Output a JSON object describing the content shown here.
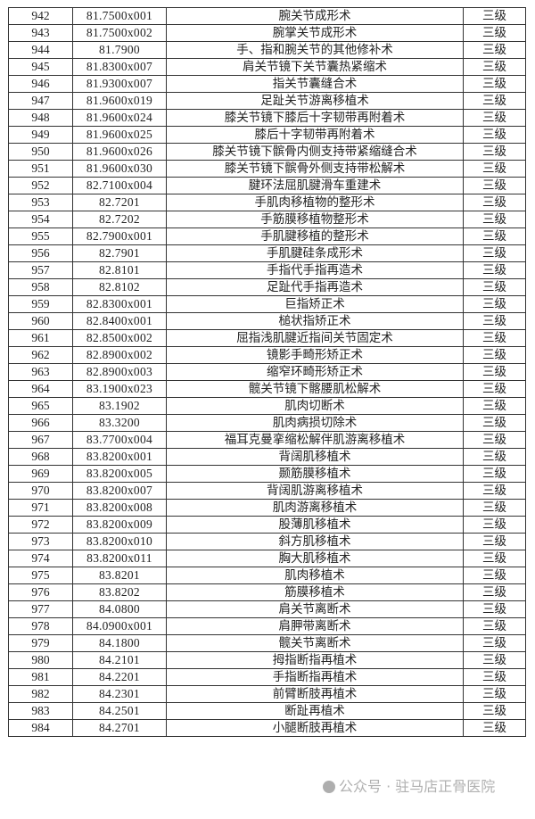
{
  "table": {
    "rows": [
      [
        "942",
        "81.7500x001",
        "腕关节成形术",
        "三级"
      ],
      [
        "943",
        "81.7500x002",
        "腕掌关节成形术",
        "三级"
      ],
      [
        "944",
        "81.7900",
        "手、指和腕关节的其他修补术",
        "三级"
      ],
      [
        "945",
        "81.8300x007",
        "肩关节镜下关节囊热紧缩术",
        "三级"
      ],
      [
        "946",
        "81.9300x007",
        "指关节囊缝合术",
        "三级"
      ],
      [
        "947",
        "81.9600x019",
        "足趾关节游离移植术",
        "三级"
      ],
      [
        "948",
        "81.9600x024",
        "膝关节镜下膝后十字韧带再附着术",
        "三级"
      ],
      [
        "949",
        "81.9600x025",
        "膝后十字韧带再附着术",
        "三级"
      ],
      [
        "950",
        "81.9600x026",
        "膝关节镜下髌骨内侧支持带紧缩缝合术",
        "三级"
      ],
      [
        "951",
        "81.9600x030",
        "膝关节镜下髌骨外侧支持带松解术",
        "三级"
      ],
      [
        "952",
        "82.7100x004",
        "腱环法屈肌腱滑车重建术",
        "三级"
      ],
      [
        "953",
        "82.7201",
        "手肌肉移植物的整形术",
        "三级"
      ],
      [
        "954",
        "82.7202",
        "手筋膜移植物整形术",
        "三级"
      ],
      [
        "955",
        "82.7900x001",
        "手肌腱移植的整形术",
        "三级"
      ],
      [
        "956",
        "82.7901",
        "手肌腱硅条成形术",
        "三级"
      ],
      [
        "957",
        "82.8101",
        "手指代手指再造术",
        "三级"
      ],
      [
        "958",
        "82.8102",
        "足趾代手指再造术",
        "三级"
      ],
      [
        "959",
        "82.8300x001",
        "巨指矫正术",
        "三级"
      ],
      [
        "960",
        "82.8400x001",
        "槌状指矫正术",
        "三级"
      ],
      [
        "961",
        "82.8500x002",
        "屈指浅肌腱近指间关节固定术",
        "三级"
      ],
      [
        "962",
        "82.8900x002",
        "镜影手畸形矫正术",
        "三级"
      ],
      [
        "963",
        "82.8900x003",
        "缩窄环畸形矫正术",
        "三级"
      ],
      [
        "964",
        "83.1900x023",
        "髋关节镜下髂腰肌松解术",
        "三级"
      ],
      [
        "965",
        "83.1902",
        "肌肉切断术",
        "三级"
      ],
      [
        "966",
        "83.3200",
        "肌肉病损切除术",
        "三级"
      ],
      [
        "967",
        "83.7700x004",
        "福耳克曼挛缩松解伴肌游离移植术",
        "三级"
      ],
      [
        "968",
        "83.8200x001",
        "背阔肌移植术",
        "三级"
      ],
      [
        "969",
        "83.8200x005",
        "颞筋膜移植术",
        "三级"
      ],
      [
        "970",
        "83.8200x007",
        "背阔肌游离移植术",
        "三级"
      ],
      [
        "971",
        "83.8200x008",
        "肌肉游离移植术",
        "三级"
      ],
      [
        "972",
        "83.8200x009",
        "股薄肌移植术",
        "三级"
      ],
      [
        "973",
        "83.8200x010",
        "斜方肌移植术",
        "三级"
      ],
      [
        "974",
        "83.8200x011",
        "胸大肌移植术",
        "三级"
      ],
      [
        "975",
        "83.8201",
        "肌肉移植术",
        "三级"
      ],
      [
        "976",
        "83.8202",
        "筋膜移植术",
        "三级"
      ],
      [
        "977",
        "84.0800",
        "肩关节离断术",
        "三级"
      ],
      [
        "978",
        "84.0900x001",
        "肩胛带离断术",
        "三级"
      ],
      [
        "979",
        "84.1800",
        "髋关节离断术",
        "三级"
      ],
      [
        "980",
        "84.2101",
        "拇指断指再植术",
        "三级"
      ],
      [
        "981",
        "84.2201",
        "手指断指再植术",
        "三级"
      ],
      [
        "982",
        "84.2301",
        "前臂断肢再植术",
        "三级"
      ],
      [
        "983",
        "84.2501",
        "断趾再植术",
        "三级"
      ],
      [
        "984",
        "84.2701",
        "小腿断肢再植术",
        "三级"
      ]
    ]
  },
  "watermark": {
    "text": "公众号 · 驻马店正骨医院",
    "icon": "wechat-icon"
  }
}
